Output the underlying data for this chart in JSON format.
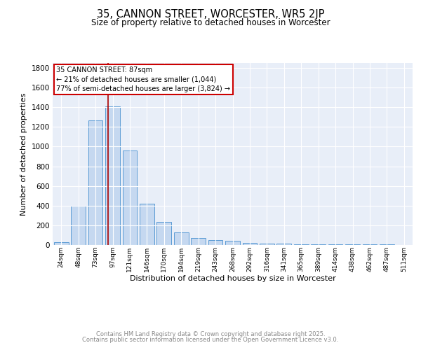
{
  "title": "35, CANNON STREET, WORCESTER, WR5 2JP",
  "subtitle": "Size of property relative to detached houses in Worcester",
  "xlabel": "Distribution of detached houses by size in Worcester",
  "ylabel": "Number of detached properties",
  "categories": [
    "24sqm",
    "48sqm",
    "73sqm",
    "97sqm",
    "121sqm",
    "146sqm",
    "170sqm",
    "194sqm",
    "219sqm",
    "243sqm",
    "268sqm",
    "292sqm",
    "316sqm",
    "341sqm",
    "365sqm",
    "389sqm",
    "414sqm",
    "438sqm",
    "462sqm",
    "487sqm",
    "511sqm"
  ],
  "values": [
    25,
    400,
    1270,
    1410,
    960,
    420,
    235,
    125,
    70,
    50,
    40,
    20,
    15,
    12,
    10,
    8,
    6,
    5,
    5,
    4,
    3
  ],
  "bar_color": "#c5d8f0",
  "bar_edge_color": "#5b9bd5",
  "background_color": "#e8eef8",
  "grid_color": "#ffffff",
  "vline_x": 2.75,
  "vline_color": "#aa0000",
  "annotation_text": "35 CANNON STREET: 87sqm\n← 21% of detached houses are smaller (1,044)\n77% of semi-detached houses are larger (3,824) →",
  "annotation_box_color": "#ffffff",
  "annotation_box_edge": "#cc0000",
  "ylim": [
    0,
    1850
  ],
  "yticks": [
    0,
    200,
    400,
    600,
    800,
    1000,
    1200,
    1400,
    1600,
    1800
  ],
  "footer_line1": "Contains HM Land Registry data © Crown copyright and database right 2025.",
  "footer_line2": "Contains public sector information licensed under the Open Government Licence v3.0."
}
